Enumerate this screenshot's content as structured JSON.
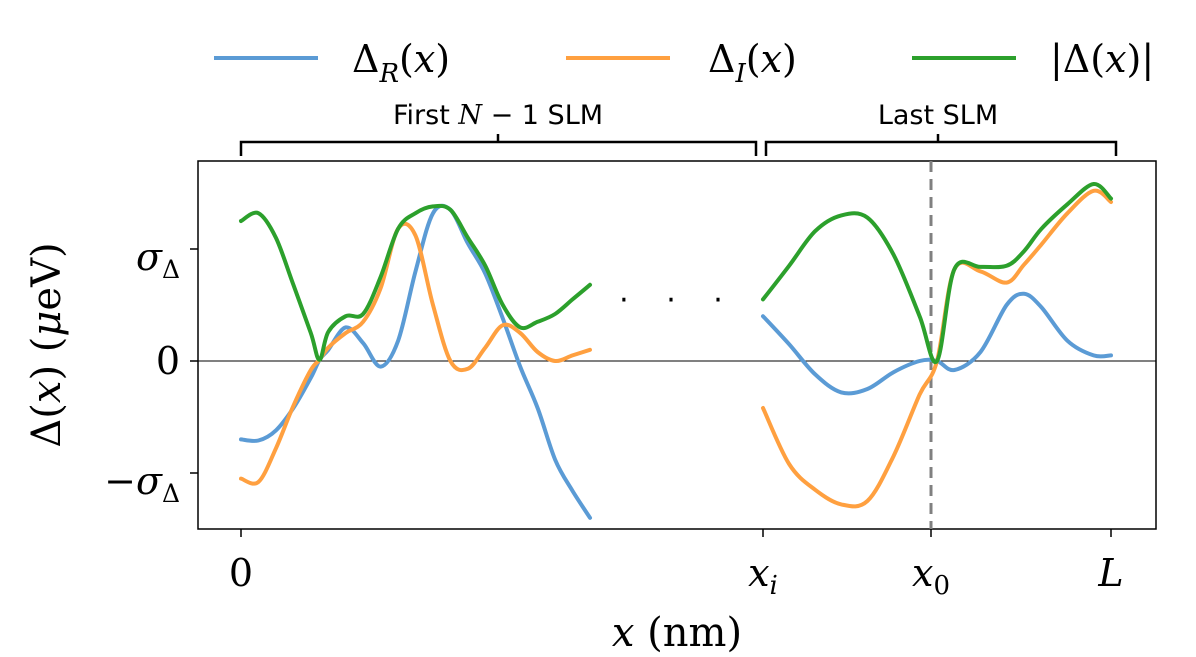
{
  "chart_data": {
    "type": "line",
    "title": "",
    "xlabel": "x (nm)",
    "ylabel": "Δ(x) (μeV)",
    "ylim": [
      -1.5,
      1.7
    ],
    "legend": [
      {
        "label": "Δ_R(x)",
        "color": "#5b9bd5"
      },
      {
        "label": "Δ_I(x)",
        "color": "#ffa040"
      },
      {
        "label": "|Δ(x)|",
        "color": "#2ca02c"
      }
    ],
    "x_ticks": [
      "0",
      "x_i",
      "x_0",
      "L"
    ],
    "y_ticks": [
      {
        "label": "σ_Δ",
        "value": 1
      },
      {
        "label": "0",
        "value": 0
      },
      {
        "label": "−σ_Δ",
        "value": -1
      }
    ],
    "brackets": [
      {
        "label": "First N − 1 SLM",
        "x_start": 0,
        "x_end": 3.0
      },
      {
        "label": "Last SLM",
        "x_start": 3.03,
        "x_end": 5.0
      }
    ],
    "gap_label": "· · ·",
    "x0_marker": 4.0,
    "segments": [
      {
        "name": "first",
        "x": [
          0,
          0.1,
          0.2,
          0.3,
          0.4,
          0.45,
          0.5,
          0.6,
          0.7,
          0.8,
          0.9,
          1.0,
          1.1,
          1.2,
          1.3,
          1.4,
          1.5,
          1.6,
          1.7,
          1.8,
          1.9,
          2.0
        ],
        "series": [
          {
            "name": "Δ_R(x)",
            "values": [
              -0.7,
              -0.71,
              -0.62,
              -0.42,
              -0.15,
              0.01,
              0.1,
              0.3,
              0.16,
              -0.05,
              0.18,
              0.8,
              1.32,
              1.35,
              1.05,
              0.78,
              0.38,
              -0.05,
              -0.42,
              -0.88,
              -1.16,
              -1.4
            ]
          },
          {
            "name": "Δ_I(x)",
            "values": [
              -1.05,
              -1.08,
              -0.78,
              -0.4,
              -0.08,
              0.01,
              0.12,
              0.25,
              0.35,
              0.65,
              1.18,
              1.12,
              0.5,
              0.0,
              -0.07,
              0.12,
              0.32,
              0.25,
              0.08,
              0.0,
              0.05,
              0.1
            ]
          },
          {
            "name": "|Δ(x)|",
            "values": [
              1.25,
              1.32,
              1.1,
              0.68,
              0.25,
              0.01,
              0.26,
              0.4,
              0.42,
              0.75,
              1.18,
              1.32,
              1.38,
              1.35,
              1.1,
              0.85,
              0.5,
              0.3,
              0.35,
              0.42,
              0.55,
              0.68
            ]
          }
        ]
      },
      {
        "name": "last",
        "x": [
          3.0,
          3.15,
          3.3,
          3.45,
          3.6,
          3.75,
          3.9,
          4.0,
          4.1,
          4.25,
          4.4,
          4.5,
          4.6,
          4.75,
          4.9,
          5.0
        ],
        "series": [
          {
            "name": "Δ_R(x)",
            "values": [
              0.4,
              0.15,
              -0.12,
              -0.28,
              -0.25,
              -0.1,
              0.0,
              0.0,
              -0.08,
              0.08,
              0.5,
              0.6,
              0.48,
              0.18,
              0.05,
              0.05
            ]
          },
          {
            "name": "Δ_I(x)",
            "values": [
              -0.42,
              -0.92,
              -1.15,
              -1.28,
              -1.25,
              -0.85,
              -0.3,
              0.0,
              0.82,
              0.8,
              0.7,
              0.86,
              1.04,
              1.32,
              1.52,
              1.42
            ]
          },
          {
            "name": "|Δ(x)|",
            "values": [
              0.55,
              0.85,
              1.16,
              1.3,
              1.28,
              0.95,
              0.4,
              0.0,
              0.82,
              0.84,
              0.85,
              0.98,
              1.18,
              1.4,
              1.58,
              1.45
            ]
          }
        ]
      }
    ]
  }
}
